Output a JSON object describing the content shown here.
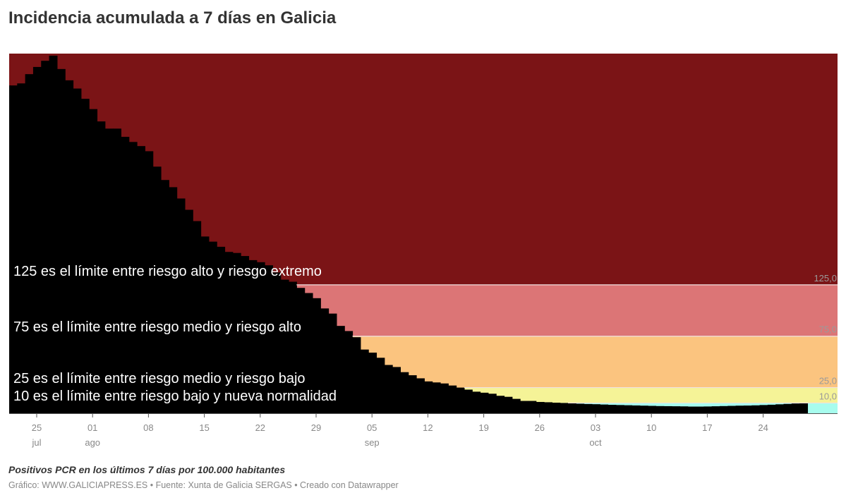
{
  "header": {
    "title": "Incidencia acumulada a 7 días en Galicia"
  },
  "notes": "Positivos PCR en los últimos 7 días por 100.000 habitantes",
  "footer": "Gráfico: WWW.GALICIAPRESS.ES • Fuente: Xunta de Galicia SERGAS • Creado con Datawrapper",
  "colors": {
    "bar": "#000000",
    "band_extreme": "#7b1416",
    "band_high": "#dc7576",
    "band_medium": "#fbc47f",
    "band_low": "#f5f397",
    "band_normal": "#a7fcee",
    "threshold_line": "#f0e0e0",
    "axis_text": "#888888",
    "annotation_text": "#ffffff"
  },
  "chart_data": {
    "type": "bar",
    "title": "Incidencia acumulada a 7 días en Galicia",
    "subtitle": "",
    "xlabel": "",
    "ylabel": "Positivos PCR en los últimos 7 días por 100.000 habitantes",
    "ylim": [
      0,
      350
    ],
    "grid": false,
    "legend": null,
    "x_start": "2020-07-22",
    "x_end": "2020-10-29",
    "x_ticks": [
      {
        "day": "25",
        "month": "jul"
      },
      {
        "day": "01",
        "month": "ago"
      },
      {
        "day": "08",
        "month": ""
      },
      {
        "day": "15",
        "month": ""
      },
      {
        "day": "22",
        "month": ""
      },
      {
        "day": "29",
        "month": ""
      },
      {
        "day": "05",
        "month": "sep"
      },
      {
        "day": "12",
        "month": ""
      },
      {
        "day": "19",
        "month": ""
      },
      {
        "day": "26",
        "month": ""
      },
      {
        "day": "03",
        "month": "oct"
      },
      {
        "day": "10",
        "month": ""
      },
      {
        "day": "17",
        "month": ""
      },
      {
        "day": "24",
        "month": ""
      }
    ],
    "values": [
      319,
      321,
      330,
      337,
      343,
      348,
      335,
      324,
      316,
      306,
      296,
      284,
      277,
      277,
      269,
      264,
      260,
      255,
      240,
      227,
      220,
      209,
      198,
      187,
      172,
      167,
      162,
      157,
      156,
      153,
      149,
      147,
      144,
      137,
      130,
      128,
      122,
      117,
      112,
      102,
      97,
      85,
      80,
      74,
      62,
      59,
      54,
      47,
      45,
      40,
      37,
      34,
      31,
      30,
      29,
      27,
      25,
      23,
      21,
      20,
      19,
      17,
      16,
      14,
      12,
      12,
      11,
      10.7,
      10.3,
      10,
      9.6,
      9.3,
      9,
      8.8,
      8.5,
      8.2,
      8,
      7.8,
      7.6,
      7.4,
      7.2,
      7,
      6.9,
      6.8,
      6.7,
      6.5,
      6.5,
      6.6,
      6.8,
      7,
      7.2,
      7.4,
      7.5,
      7.7,
      8,
      8.3,
      8.7,
      9.1,
      9.5,
      9.8
    ],
    "bands": [
      {
        "from": 125,
        "to": 350,
        "label": "",
        "color": "#7b1416"
      },
      {
        "from": 75,
        "to": 125,
        "label": "125,0",
        "color": "#dc7576"
      },
      {
        "from": 25,
        "to": 75,
        "label": "75,0",
        "color": "#fbc47f"
      },
      {
        "from": 10,
        "to": 25,
        "label": "25,0",
        "color": "#f5f397"
      },
      {
        "from": 0,
        "to": 10,
        "label": "10,0",
        "color": "#a7fcee"
      }
    ],
    "threshold_labels": [
      "125,0",
      "75,0",
      "25,0",
      "10,0"
    ],
    "annotations": [
      {
        "text": "125 es el límite entre riesgo alto y riesgo extremo",
        "value": 125
      },
      {
        "text": "75 es el límite entre riesgo medio y riesgo alto",
        "value": 75
      },
      {
        "text": "25 es el límite entre riesgo medio y riesgo bajo",
        "value": 25
      },
      {
        "text": "10 es el límite entre riesgo bajo y nueva normalidad",
        "value": 10
      }
    ]
  }
}
